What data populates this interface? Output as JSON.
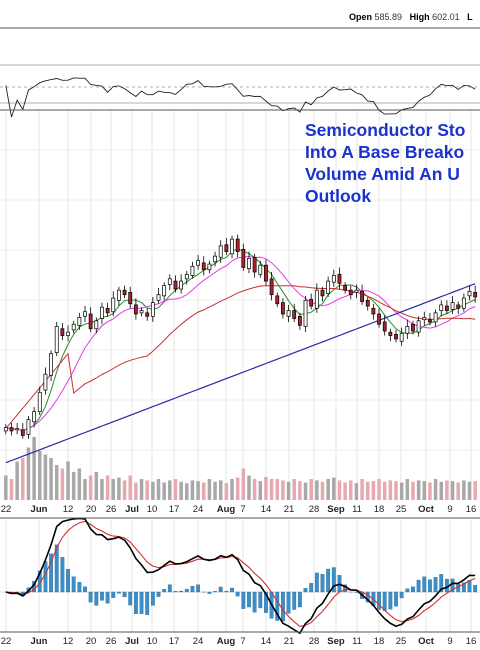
{
  "header": {
    "open_label": "Open",
    "open_value": "585.89",
    "high_label": "High",
    "high_value": "602.01",
    "tail": "L"
  },
  "headline": {
    "line1": "Semiconductor Sto",
    "line2": "Into A Base Breako",
    "line3": "Volume Amid An U",
    "line4": "Outlook"
  },
  "x_labels": [
    {
      "text": "22",
      "bold": false
    },
    {
      "text": "Jun",
      "bold": true
    },
    {
      "text": "12",
      "bold": false
    },
    {
      "text": "20",
      "bold": false
    },
    {
      "text": "26",
      "bold": false
    },
    {
      "text": "Jul",
      "bold": true
    },
    {
      "text": "10",
      "bold": false
    },
    {
      "text": "17",
      "bold": false
    },
    {
      "text": "24",
      "bold": false
    },
    {
      "text": "Aug",
      "bold": true
    },
    {
      "text": "7",
      "bold": false
    },
    {
      "text": "14",
      "bold": false
    },
    {
      "text": "21",
      "bold": false
    },
    {
      "text": "28",
      "bold": false
    },
    {
      "text": "Sep",
      "bold": true
    },
    {
      "text": "11",
      "bold": false
    },
    {
      "text": "18",
      "bold": false
    },
    {
      "text": "25",
      "bold": false
    },
    {
      "text": "Oct",
      "bold": true
    },
    {
      "text": "9",
      "bold": false
    },
    {
      "text": "16",
      "bold": false
    }
  ],
  "colors": {
    "up_candle": "#ffffff",
    "down_candle": "#b0202e",
    "ma_green": "#2e8b2e",
    "ma_pink": "#e040e0",
    "ma_red": "#c83232",
    "ma_blue": "#2828a0",
    "vol_up": "#a8a8a8",
    "vol_down": "#e8a8b0",
    "macd_line": "#000000",
    "signal_line": "#d03030",
    "histogram": "#3a8fc8",
    "headline": "#1a33cc"
  },
  "chart_data": {
    "type": "candlestick",
    "title": "",
    "xlabel": "",
    "ylabel": "",
    "grid": true,
    "panels": [
      "rsi",
      "price",
      "macd"
    ],
    "closes": [
      431,
      428,
      430,
      424,
      438,
      445,
      462,
      478,
      496,
      520,
      512,
      515,
      522,
      528,
      533,
      518,
      525,
      537,
      532,
      545,
      552,
      548,
      540,
      531,
      534,
      529,
      541,
      548,
      556,
      562,
      553,
      560,
      566,
      573,
      578,
      570,
      575,
      582,
      591,
      586,
      597,
      586,
      572,
      580,
      568,
      574,
      560,
      548,
      540,
      531,
      534,
      527,
      521,
      543,
      538,
      552,
      547,
      560,
      565,
      558,
      552,
      548,
      552,
      542,
      538,
      531,
      522,
      516,
      512,
      509,
      514,
      520,
      516,
      525,
      528,
      524,
      532,
      539,
      534,
      541,
      536,
      545,
      551,
      546
    ],
    "volume": [
      0.35,
      0.3,
      0.55,
      0.6,
      0.75,
      0.9,
      0.7,
      0.65,
      0.6,
      0.5,
      0.45,
      0.55,
      0.4,
      0.45,
      0.3,
      0.35,
      0.4,
      0.3,
      0.35,
      0.3,
      0.32,
      0.28,
      0.35,
      0.25,
      0.3,
      0.28,
      0.26,
      0.3,
      0.25,
      0.28,
      0.3,
      0.26,
      0.24,
      0.28,
      0.27,
      0.25,
      0.3,
      0.26,
      0.28,
      0.24,
      0.3,
      0.32,
      0.45,
      0.35,
      0.3,
      0.27,
      0.33,
      0.3,
      0.3,
      0.28,
      0.26,
      0.3,
      0.27,
      0.25,
      0.3,
      0.28,
      0.26,
      0.3,
      0.32,
      0.28,
      0.25,
      0.28,
      0.24,
      0.3,
      0.26,
      0.27,
      0.3,
      0.26,
      0.28,
      0.27,
      0.25,
      0.3,
      0.26,
      0.28,
      0.27,
      0.25,
      0.3,
      0.26,
      0.28,
      0.27,
      0.25,
      0.28,
      0.26,
      0.27
    ]
  }
}
